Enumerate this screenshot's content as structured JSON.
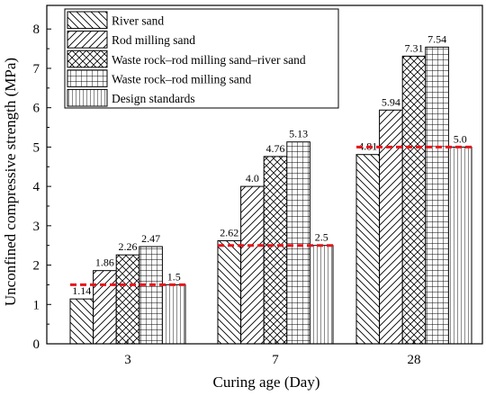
{
  "chart_data": {
    "type": "bar",
    "xlabel": "Curing age (Day)",
    "ylabel": "Unconfined compressive strength (MPa)",
    "ylim": [
      0,
      8.6
    ],
    "yticks": [
      0,
      1,
      2,
      3,
      4,
      5,
      6,
      7,
      8
    ],
    "categories": [
      "3",
      "7",
      "28"
    ],
    "series": [
      {
        "name": "River sand",
        "values": [
          1.14,
          2.62,
          4.81
        ],
        "labels": [
          "1.14",
          "2.62",
          "4.81"
        ],
        "pattern": "diag-back"
      },
      {
        "name": "Rod milling sand",
        "values": [
          1.86,
          4.0,
          5.94
        ],
        "labels": [
          "1.86",
          "4.0",
          "5.94"
        ],
        "pattern": "diag-fwd"
      },
      {
        "name": "Waste rock–rod milling sand–river sand",
        "values": [
          2.26,
          4.76,
          7.31
        ],
        "labels": [
          "2.26",
          "4.76",
          "7.31"
        ],
        "pattern": "cross-diag"
      },
      {
        "name": "Waste rock–rod milling sand",
        "values": [
          2.47,
          5.13,
          7.54
        ],
        "labels": [
          "2.47",
          "5.13",
          "7.54"
        ],
        "pattern": "grid"
      },
      {
        "name": "Design standards",
        "values": [
          1.5,
          2.5,
          5.0
        ],
        "labels": [
          "1.5",
          "2.5",
          "5.0"
        ],
        "pattern": "vertical"
      }
    ],
    "design_line_color": "#e8141b",
    "legend_position": "top-left",
    "grid": false
  }
}
